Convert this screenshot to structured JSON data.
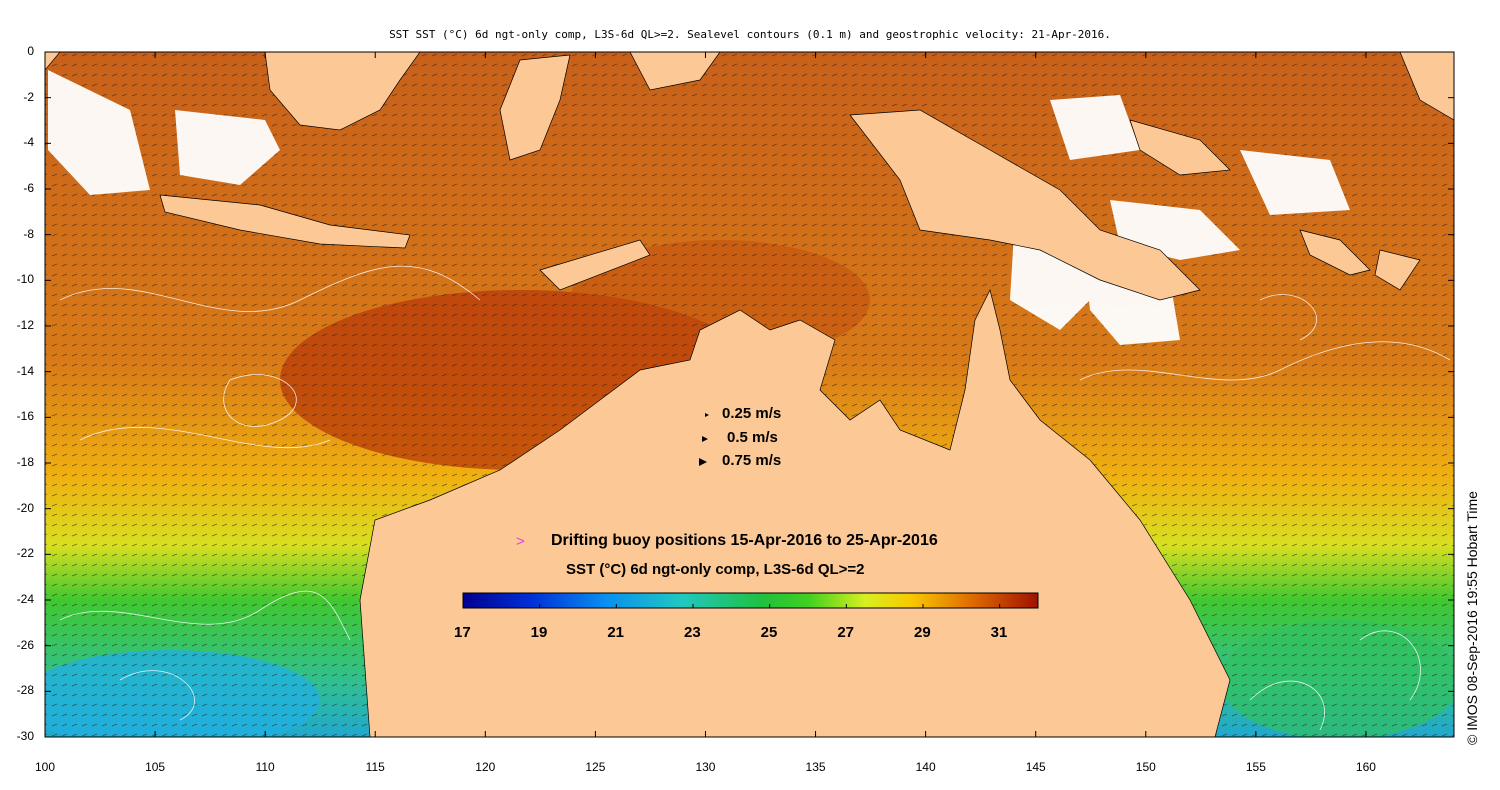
{
  "title": "SST SST (°C) 6d ngt-only comp, L3S-6d QL>=2. Sealevel contours (0.1 m) and geostrophic velocity: 21-Apr-2016.",
  "credit": "© IMOS 08-Sep-2016 19:55 Hobart Time",
  "axes": {
    "x_ticks": [
      "100",
      "105",
      "110",
      "115",
      "120",
      "125",
      "130",
      "135",
      "140",
      "145",
      "150",
      "155",
      "160"
    ],
    "y_ticks": [
      "0",
      "-2",
      "-4",
      "-6",
      "-8",
      "-10",
      "-12",
      "-14",
      "-16",
      "-18",
      "-20",
      "-22",
      "-24",
      "-26",
      "-28",
      "-30"
    ],
    "lon_range": [
      100,
      164
    ],
    "lat_range": [
      -30,
      0
    ]
  },
  "velocity_legend": [
    {
      "label": "0.25 m/s"
    },
    {
      "label": "0.5 m/s"
    },
    {
      "label": "0.75 m/s"
    }
  ],
  "buoy_legend": {
    "symbol": ">",
    "label": "Drifting buoy positions 15-Apr-2016 to 25-Apr-2016",
    "color": "#e040e0"
  },
  "colorbar": {
    "title": "SST (°C) 6d ngt-only comp, L3S-6d QL>=2",
    "ticks": [
      "17",
      "19",
      "21",
      "23",
      "25",
      "27",
      "29",
      "31"
    ],
    "range": [
      17,
      32
    ]
  },
  "colors": {
    "land": "#fcc896",
    "cloud": "#ffffff"
  }
}
